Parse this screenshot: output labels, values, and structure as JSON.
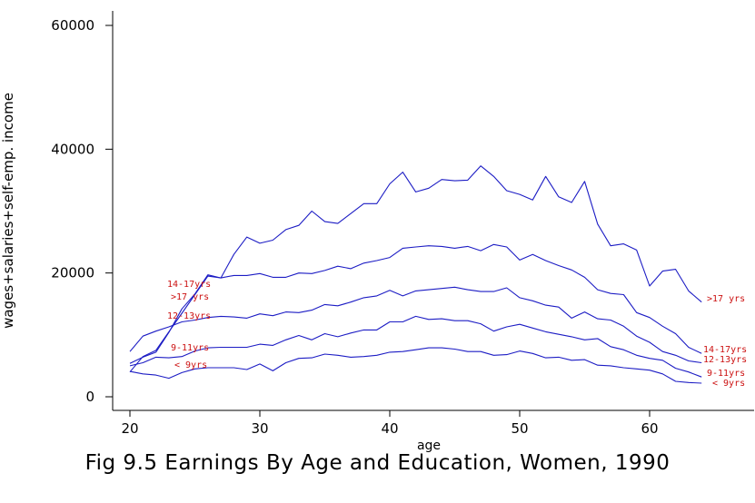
{
  "chart_data": {
    "type": "line",
    "title": "Fig 9.5 Earnings By Age and Education, Women, 1990",
    "xlabel": "age",
    "ylabel": "wages+salaries+self-emp. income",
    "xlim": [
      19,
      66
    ],
    "ylim": [
      -2000,
      62000
    ],
    "xticks": [
      20,
      30,
      40,
      50,
      60
    ],
    "yticks": [
      0,
      20000,
      40000,
      60000
    ],
    "xtick_labels": [
      "20",
      "30",
      "40",
      "50",
      "60"
    ],
    "ytick_labels": [
      "0",
      "20000",
      "40000",
      "60000"
    ],
    "grid": false,
    "line_color": "#1c1cc4",
    "label_color": "#cc1111",
    "x": [
      20,
      21,
      22,
      23,
      24,
      25,
      26,
      27,
      28,
      29,
      30,
      31,
      32,
      33,
      34,
      35,
      36,
      37,
      38,
      39,
      40,
      41,
      42,
      43,
      44,
      45,
      46,
      47,
      48,
      49,
      50,
      51,
      52,
      53,
      54,
      55,
      56,
      57,
      58,
      59,
      60,
      61,
      62,
      63,
      64
    ],
    "series": [
      {
        "name": ">17 yrs",
        "start_label": ">17 yrs",
        "end_label": ">17 yrs",
        "values": [
          4000,
          6500,
          7500,
          10500,
          13500,
          16500,
          19500,
          19200,
          23000,
          25800,
          24800,
          25300,
          27000,
          27700,
          30000,
          28300,
          28000,
          29600,
          31200,
          31200,
          34400,
          36300,
          33100,
          33700,
          35100,
          34900,
          35000,
          37300,
          35600,
          33300,
          32700,
          31800,
          35600,
          32300,
          31400,
          34800,
          27900,
          24400,
          24700,
          23700,
          17900,
          20300,
          20600,
          17100,
          15300
        ]
      },
      {
        "name": "14-17yrs",
        "start_label": "14-17yrs",
        "end_label": "14-17yrs",
        "values": [
          5400,
          6400,
          7200,
          10400,
          14200,
          16600,
          19700,
          19200,
          19600,
          19600,
          19900,
          19300,
          19300,
          20000,
          19900,
          20400,
          21100,
          20700,
          21600,
          22000,
          22500,
          24000,
          24200,
          24400,
          24300,
          24000,
          24300,
          23600,
          24600,
          24200,
          22100,
          23000,
          22000,
          21200,
          20500,
          19300,
          17300,
          16700,
          16500,
          13600,
          12800,
          11400,
          10200,
          8000,
          7000
        ]
      },
      {
        "name": "12-13yrs",
        "start_label": "12-13yrs",
        "end_label": "12-13yrs",
        "values": [
          7300,
          9800,
          10600,
          11300,
          12100,
          12400,
          12800,
          13000,
          12900,
          12700,
          13400,
          13100,
          13700,
          13600,
          14000,
          14900,
          14700,
          15300,
          16000,
          16300,
          17200,
          16300,
          17100,
          17300,
          17500,
          17700,
          17300,
          17000,
          17000,
          17600,
          16000,
          15500,
          14800,
          14500,
          12700,
          13700,
          12600,
          12400,
          11400,
          9800,
          8800,
          7300,
          6700,
          5800,
          5500
        ]
      },
      {
        "name": "9-11yrs",
        "start_label": "9-11yrs",
        "end_label": "9-11yrs",
        "values": [
          5000,
          5500,
          6400,
          6300,
          6500,
          7400,
          7900,
          8000,
          8000,
          8000,
          8500,
          8300,
          9200,
          9900,
          9200,
          10200,
          9700,
          10300,
          10800,
          10800,
          12100,
          12100,
          13000,
          12500,
          12600,
          12300,
          12300,
          11800,
          10600,
          11300,
          11700,
          11100,
          10500,
          10100,
          9700,
          9200,
          9400,
          8100,
          7600,
          6700,
          6200,
          5900,
          4600,
          4000,
          3200
        ]
      },
      {
        "name": "< 9yrs",
        "start_label": "< 9yrs",
        "end_label": "< 9yrs",
        "values": [
          4100,
          3700,
          3500,
          3000,
          3900,
          4500,
          4700,
          4700,
          4700,
          4400,
          5300,
          4200,
          5500,
          6200,
          6300,
          6900,
          6700,
          6400,
          6500,
          6700,
          7200,
          7300,
          7600,
          7900,
          7900,
          7700,
          7300,
          7300,
          6700,
          6800,
          7400,
          7000,
          6300,
          6400,
          5900,
          6000,
          5100,
          5000,
          4700,
          4500,
          4300,
          3700,
          2500,
          2300,
          2200
        ]
      }
    ]
  }
}
